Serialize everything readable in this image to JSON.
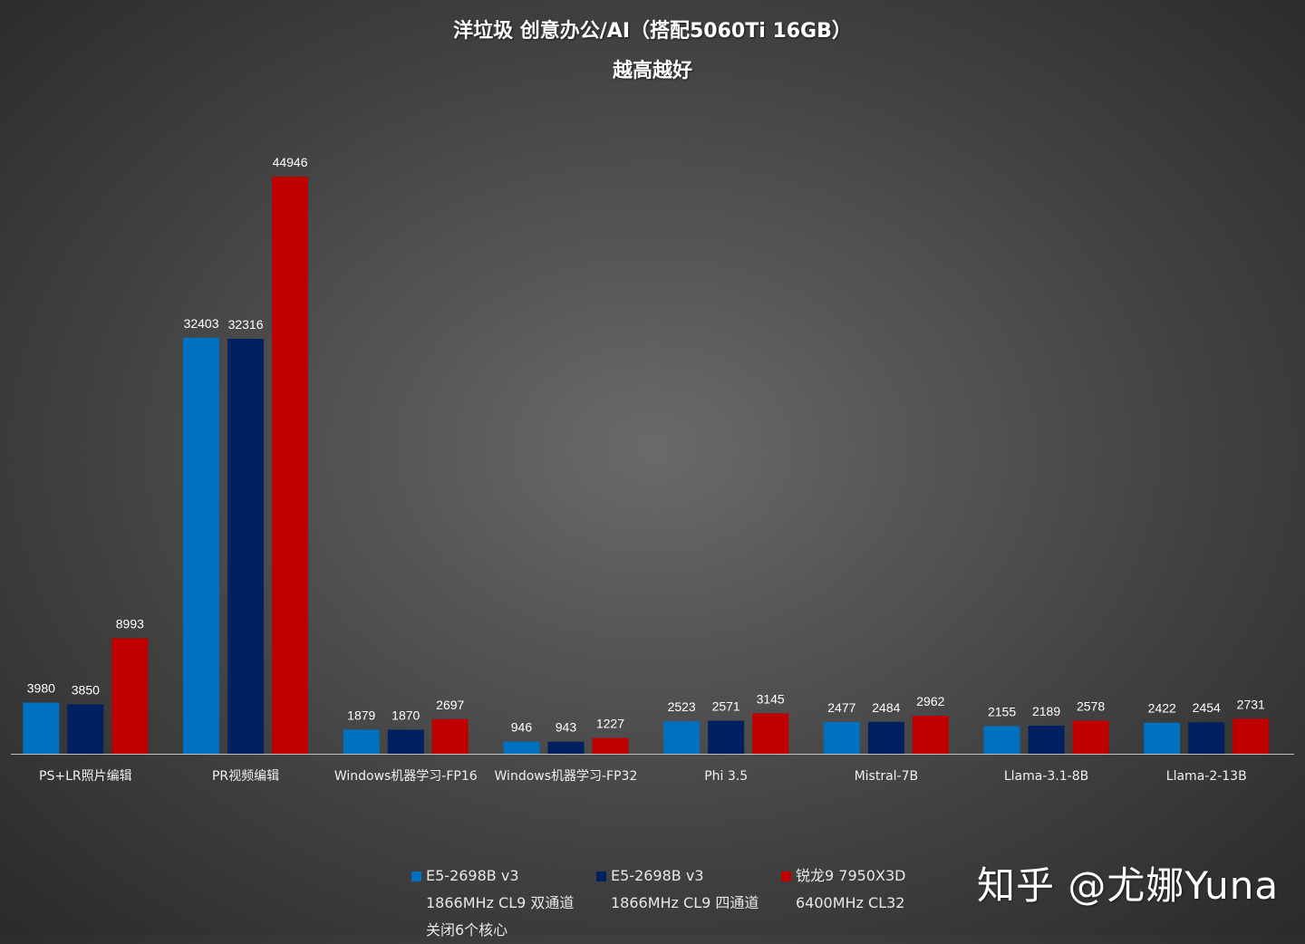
{
  "chart_data": {
    "type": "bar",
    "title": "洋垃圾 创意办公/AI（搭配5060Ti 16GB）",
    "subtitle": "越高越好",
    "categories": [
      "PS+LR照片编辑",
      "PR视频编辑",
      "Windows机器学习-FP16",
      "Windows机器学习-FP32",
      "Phi 3.5",
      "Mistral-7B",
      "Llama-3.1-8B",
      "Llama-2-13B"
    ],
    "series": [
      {
        "name": "E5-2698B v3 1866MHz CL9 双通道 关闭6个核心",
        "color": "#0070c0",
        "values": [
          3980,
          32403,
          1879,
          946,
          2523,
          2477,
          2155,
          2422
        ]
      },
      {
        "name": "E5-2698B v3 1866MHz CL9 四通道",
        "color": "#002060",
        "values": [
          3850,
          32316,
          1870,
          943,
          2571,
          2484,
          2189,
          2454
        ]
      },
      {
        "name": "锐龙9 7950X3D 6400MHz CL32",
        "color": "#c00000",
        "values": [
          8993,
          44946,
          2697,
          1227,
          3145,
          2962,
          2578,
          2731
        ]
      }
    ],
    "ylim": [
      0,
      44946
    ],
    "grid": false,
    "legend_position": "bottom"
  },
  "legend": [
    {
      "lines": [
        "E5-2698B v3",
        "1866MHz CL9 双通道",
        "关闭6个核心"
      ]
    },
    {
      "lines": [
        "E5-2698B v3",
        "1866MHz CL9 四通道"
      ]
    },
    {
      "lines": [
        "锐龙9 7950X3D",
        "6400MHz CL32"
      ]
    }
  ],
  "watermark": "知乎 @尤娜Yuna"
}
